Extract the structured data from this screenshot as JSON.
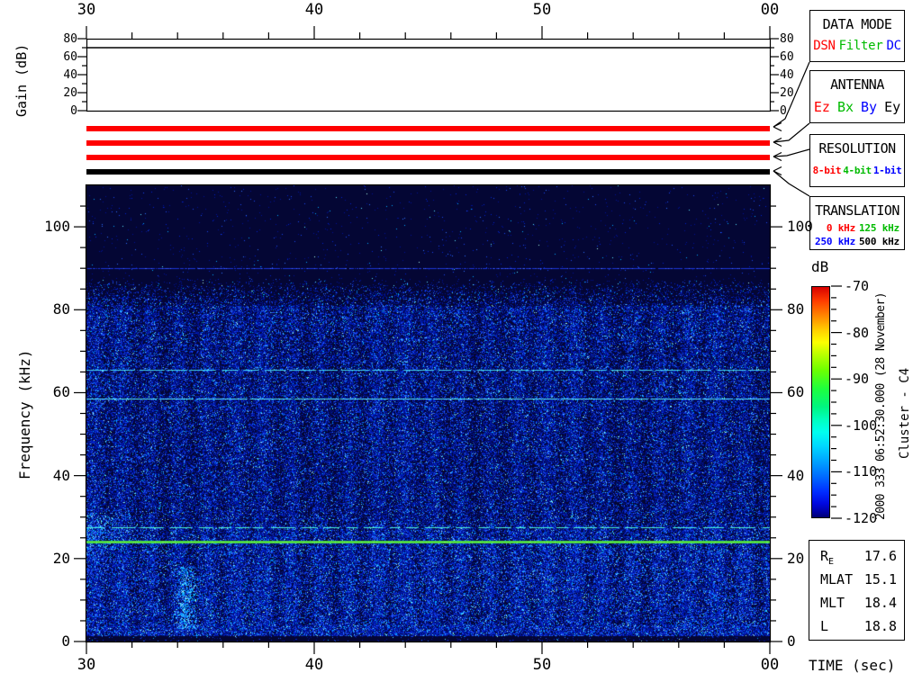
{
  "page": {
    "background": "#ffffff"
  },
  "gain_panel": {
    "ylabel": "Gain (dB)",
    "tick_labels": [
      "0",
      "20",
      "40",
      "60",
      "80"
    ],
    "gain_value_db": 70
  },
  "time_axis": {
    "tick_labels": [
      "30",
      "40",
      "50",
      "00"
    ],
    "xlabel": "TIME (sec)"
  },
  "freq_axis": {
    "ylabel": "Frequency (kHz)",
    "tick_labels": [
      "0",
      "20",
      "40",
      "60",
      "80",
      "100"
    ]
  },
  "status_bars": [
    {
      "name": "data-mode-bar",
      "color": "#ff0000"
    },
    {
      "name": "antenna-bar",
      "color": "#ff0000"
    },
    {
      "name": "resolution-bar",
      "color": "#ff0000"
    },
    {
      "name": "translation-bar",
      "color": "#000000"
    }
  ],
  "legend_panels": [
    {
      "title": "DATA MODE",
      "items": [
        {
          "label": "DSN",
          "color": "#ff0000"
        },
        {
          "label": "Filter",
          "color": "#00bb00"
        },
        {
          "label": "DC",
          "color": "#0000ff"
        }
      ]
    },
    {
      "title": "ANTENNA",
      "items": [
        {
          "label": "Ez",
          "color": "#ff0000"
        },
        {
          "label": "Bx",
          "color": "#00bb00"
        },
        {
          "label": "By",
          "color": "#0000ff"
        },
        {
          "label": "Ey",
          "color": "#000000"
        }
      ]
    },
    {
      "title": "RESOLUTION",
      "items": [
        {
          "label": "8-bit",
          "color": "#ff0000"
        },
        {
          "label": "4-bit",
          "color": "#00bb00"
        },
        {
          "label": "1-bit",
          "color": "#0000ff"
        }
      ]
    },
    {
      "title": "TRANSLATION",
      "grid_items": [
        [
          {
            "label": "0 kHz",
            "color": "#ff0000"
          },
          {
            "label": "125 kHz",
            "color": "#00bb00"
          }
        ],
        [
          {
            "label": "250 kHz",
            "color": "#0000ff"
          },
          {
            "label": "500 kHz",
            "color": "#000000"
          }
        ]
      ]
    }
  ],
  "colorbar": {
    "label": "dB",
    "tick_labels": [
      "-70",
      "-80",
      "-90",
      "-100",
      "-110",
      "-120"
    ],
    "gradient": [
      [
        "#d80000",
        0
      ],
      [
        "#ff3c00",
        6
      ],
      [
        "#ff8c00",
        13
      ],
      [
        "#ffd200",
        19
      ],
      [
        "#fdff00",
        24
      ],
      [
        "#beff00",
        29
      ],
      [
        "#6eff00",
        36
      ],
      [
        "#1fff3c",
        44
      ],
      [
        "#00f580",
        52
      ],
      [
        "#00ffc3",
        58
      ],
      [
        "#00fff0",
        63
      ],
      [
        "#00d8ff",
        69
      ],
      [
        "#00a0ff",
        76
      ],
      [
        "#0064ff",
        83
      ],
      [
        "#002cff",
        89
      ],
      [
        "#0008e0",
        94
      ],
      [
        "#0000a0",
        98
      ],
      [
        "#000072",
        100
      ]
    ]
  },
  "side_text": {
    "datetime": "2000 333 06:52:30.000 (28 November)",
    "spacecraft": "Cluster - C4"
  },
  "ephemeris": {
    "rows": [
      {
        "label": "R",
        "sub": "E",
        "value": "17.6"
      },
      {
        "label": "MLAT",
        "sub": "",
        "value": "15.1"
      },
      {
        "label": "MLT",
        "sub": "",
        "value": "18.4"
      },
      {
        "label": "L",
        "sub": "",
        "value": "18.8"
      }
    ]
  },
  "chart_data": {
    "type": "heatmap",
    "title": "Cluster C4 WBD wideband spectrogram",
    "xlabel": "TIME (sec)",
    "ylabel": "Frequency (kHz)",
    "x_tick_labels": [
      "30",
      "40",
      "50",
      "00"
    ],
    "x_minor_step_sec": 2,
    "y_range_khz": [
      0,
      110
    ],
    "y_major_step_khz": 20,
    "y_minor_step_khz": 5,
    "color_scale_db": {
      "min": -120,
      "max": -70,
      "label": "dB"
    },
    "gain_trace_db": 70,
    "noise_band": {
      "dense_below_khz": 81,
      "sparse_up_to_khz": 88,
      "bright_below_khz": 28,
      "quiet_below_khz": 1.5
    },
    "spectral_lines_khz": [
      {
        "freq": 90,
        "appearance": "faint blue dashed"
      },
      {
        "freq": 65.5,
        "appearance": "cyan intermittent"
      },
      {
        "freq": 58.5,
        "appearance": "cyan nearly solid"
      },
      {
        "freq": 27.5,
        "appearance": "pale cyan broken"
      },
      {
        "freq": 24,
        "appearance": "bright green solid"
      }
    ],
    "events": [
      {
        "x_frac": 0.145,
        "freq_khz": [
          3,
          18
        ],
        "appearance": "cyan low-frequency burst"
      },
      {
        "x_frac": 0.0,
        "freq_khz": [
          22,
          31
        ],
        "appearance": "cyan patch at left edge"
      }
    ]
  }
}
